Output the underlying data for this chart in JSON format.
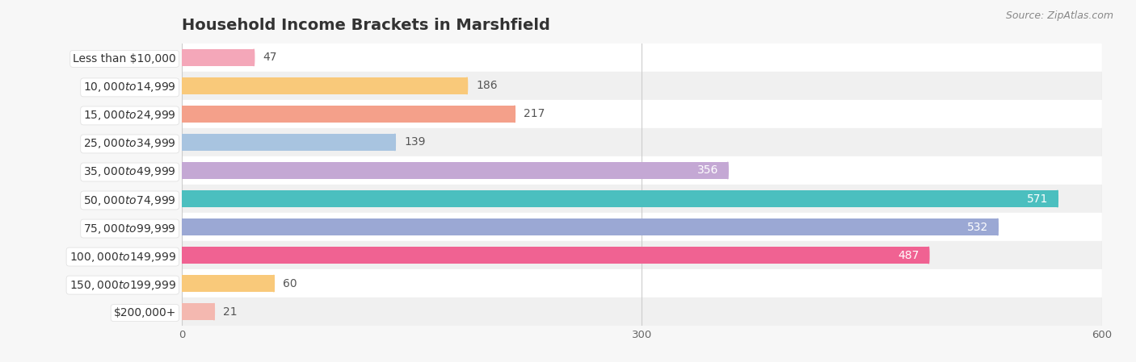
{
  "title": "Household Income Brackets in Marshfield",
  "source": "Source: ZipAtlas.com",
  "categories": [
    "Less than $10,000",
    "$10,000 to $14,999",
    "$15,000 to $24,999",
    "$25,000 to $34,999",
    "$35,000 to $49,999",
    "$50,000 to $74,999",
    "$75,000 to $99,999",
    "$100,000 to $149,999",
    "$150,000 to $199,999",
    "$200,000+"
  ],
  "values": [
    47,
    186,
    217,
    139,
    356,
    571,
    532,
    487,
    60,
    21
  ],
  "bar_colors": [
    "#F4A7B9",
    "#F9C97A",
    "#F4A08A",
    "#A8C4E0",
    "#C4A8D4",
    "#4BBFBF",
    "#9BA8D4",
    "#F06292",
    "#F9C97A",
    "#F4B8B0"
  ],
  "value_inside_color": "#ffffff",
  "value_outside_color": "#555555",
  "value_inside_threshold": 300,
  "xlim": [
    0,
    600
  ],
  "xticks": [
    0,
    300,
    600
  ],
  "background_color": "#f7f7f7",
  "row_colors": [
    "#ffffff",
    "#f0f0f0"
  ],
  "title_fontsize": 14,
  "ylabel_fontsize": 10,
  "value_fontsize": 10,
  "source_fontsize": 9,
  "bar_height": 0.6
}
